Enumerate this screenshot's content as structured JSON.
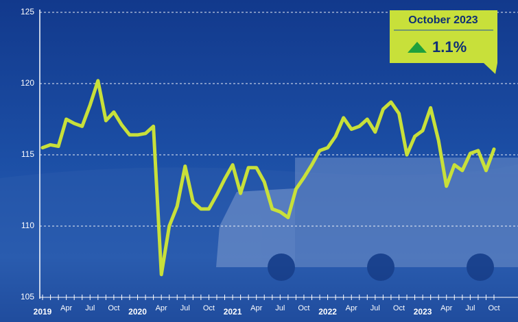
{
  "chart_data": {
    "type": "line",
    "annotation": {
      "title": "October 2023",
      "change": "1.1%"
    },
    "categories": [
      "2019",
      null,
      null,
      "Apr",
      null,
      null,
      "Jul",
      null,
      null,
      "Oct",
      null,
      null,
      "2020",
      null,
      null,
      "Apr",
      null,
      null,
      "Jul",
      null,
      null,
      "Oct",
      null,
      null,
      "2021",
      null,
      null,
      "Apr",
      null,
      null,
      "Jul",
      null,
      null,
      "Oct",
      null,
      null,
      "2022",
      null,
      null,
      "Apr",
      null,
      null,
      "Jul",
      null,
      null,
      "Oct",
      null,
      null,
      "2023",
      null,
      null,
      "Apr",
      null,
      null,
      "Jul",
      null,
      null,
      "Oct"
    ],
    "series": [
      {
        "color": "#c8e03a",
        "values": [
          115.5,
          115.7,
          115.6,
          117.5,
          117.2,
          117.0,
          118.5,
          120.2,
          117.4,
          118.0,
          117.1,
          116.4,
          116.4,
          116.5,
          117.0,
          106.6,
          110.0,
          111.4,
          114.2,
          111.7,
          111.2,
          111.2,
          112.2,
          113.3,
          114.3,
          112.3,
          114.1,
          114.1,
          113.1,
          111.2,
          111.0,
          110.6,
          112.6,
          113.4,
          114.3,
          115.3,
          115.5,
          116.3,
          117.6,
          116.8,
          117.0,
          117.5,
          116.6,
          118.2,
          118.7,
          117.9,
          115.0,
          116.3,
          116.7,
          118.3,
          116.0,
          112.8,
          114.3,
          113.9,
          115.1,
          115.3,
          113.9,
          115.4
        ]
      }
    ],
    "ylim": [
      105,
      125
    ],
    "yticks": [
      105,
      110,
      115,
      120,
      125
    ],
    "grid": true
  }
}
